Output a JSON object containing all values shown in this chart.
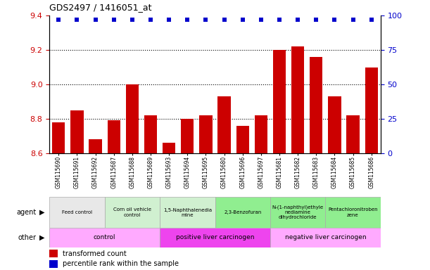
{
  "title": "GDS2497 / 1416051_at",
  "samples": [
    "GSM115690",
    "GSM115691",
    "GSM115692",
    "GSM115687",
    "GSM115688",
    "GSM115689",
    "GSM115693",
    "GSM115694",
    "GSM115695",
    "GSM115680",
    "GSM115696",
    "GSM115697",
    "GSM115681",
    "GSM115682",
    "GSM115683",
    "GSM115684",
    "GSM115685",
    "GSM115686"
  ],
  "bar_values": [
    8.78,
    8.85,
    8.68,
    8.79,
    9.0,
    8.82,
    8.66,
    8.8,
    8.82,
    8.93,
    8.76,
    8.82,
    9.2,
    9.22,
    9.16,
    8.93,
    8.82,
    9.1
  ],
  "percentile_values": [
    97,
    97,
    97,
    97,
    97,
    97,
    97,
    97,
    97,
    97,
    97,
    97,
    97,
    97,
    97,
    97,
    97,
    97
  ],
  "ylim": [
    8.6,
    9.4
  ],
  "y2lim": [
    0,
    100
  ],
  "yticks": [
    8.6,
    8.8,
    9.0,
    9.2,
    9.4
  ],
  "y2ticks": [
    0,
    25,
    50,
    75,
    100
  ],
  "dotted_lines": [
    8.8,
    9.0,
    9.2
  ],
  "bar_color": "#cc0000",
  "dot_color": "#0000cc",
  "agent_groups": [
    {
      "label": "Feed control",
      "start": 0,
      "end": 3,
      "color": "#e8e8e8"
    },
    {
      "label": "Corn oil vehicle\ncontrol",
      "start": 3,
      "end": 6,
      "color": "#d0f0d0"
    },
    {
      "label": "1,5-Naphthalenedia\nmine",
      "start": 6,
      "end": 9,
      "color": "#d0f0d0"
    },
    {
      "label": "2,3-Benzofuran",
      "start": 9,
      "end": 12,
      "color": "#90ee90"
    },
    {
      "label": "N-(1-naphthyl)ethyle\nnediamine\ndihydrochloride",
      "start": 12,
      "end": 15,
      "color": "#90ee90"
    },
    {
      "label": "Pentachloronitroben\nzene",
      "start": 15,
      "end": 18,
      "color": "#90ee90"
    }
  ],
  "other_groups": [
    {
      "label": "control",
      "start": 0,
      "end": 6,
      "color": "#ffaaff"
    },
    {
      "label": "positive liver carcinogen",
      "start": 6,
      "end": 12,
      "color": "#ee44ee"
    },
    {
      "label": "negative liver carcinogen",
      "start": 12,
      "end": 18,
      "color": "#ffaaff"
    }
  ],
  "legend_bar_label": "transformed count",
  "legend_dot_label": "percentile rank within the sample",
  "tick_color_left": "#cc0000",
  "tick_color_right": "#0000cc"
}
